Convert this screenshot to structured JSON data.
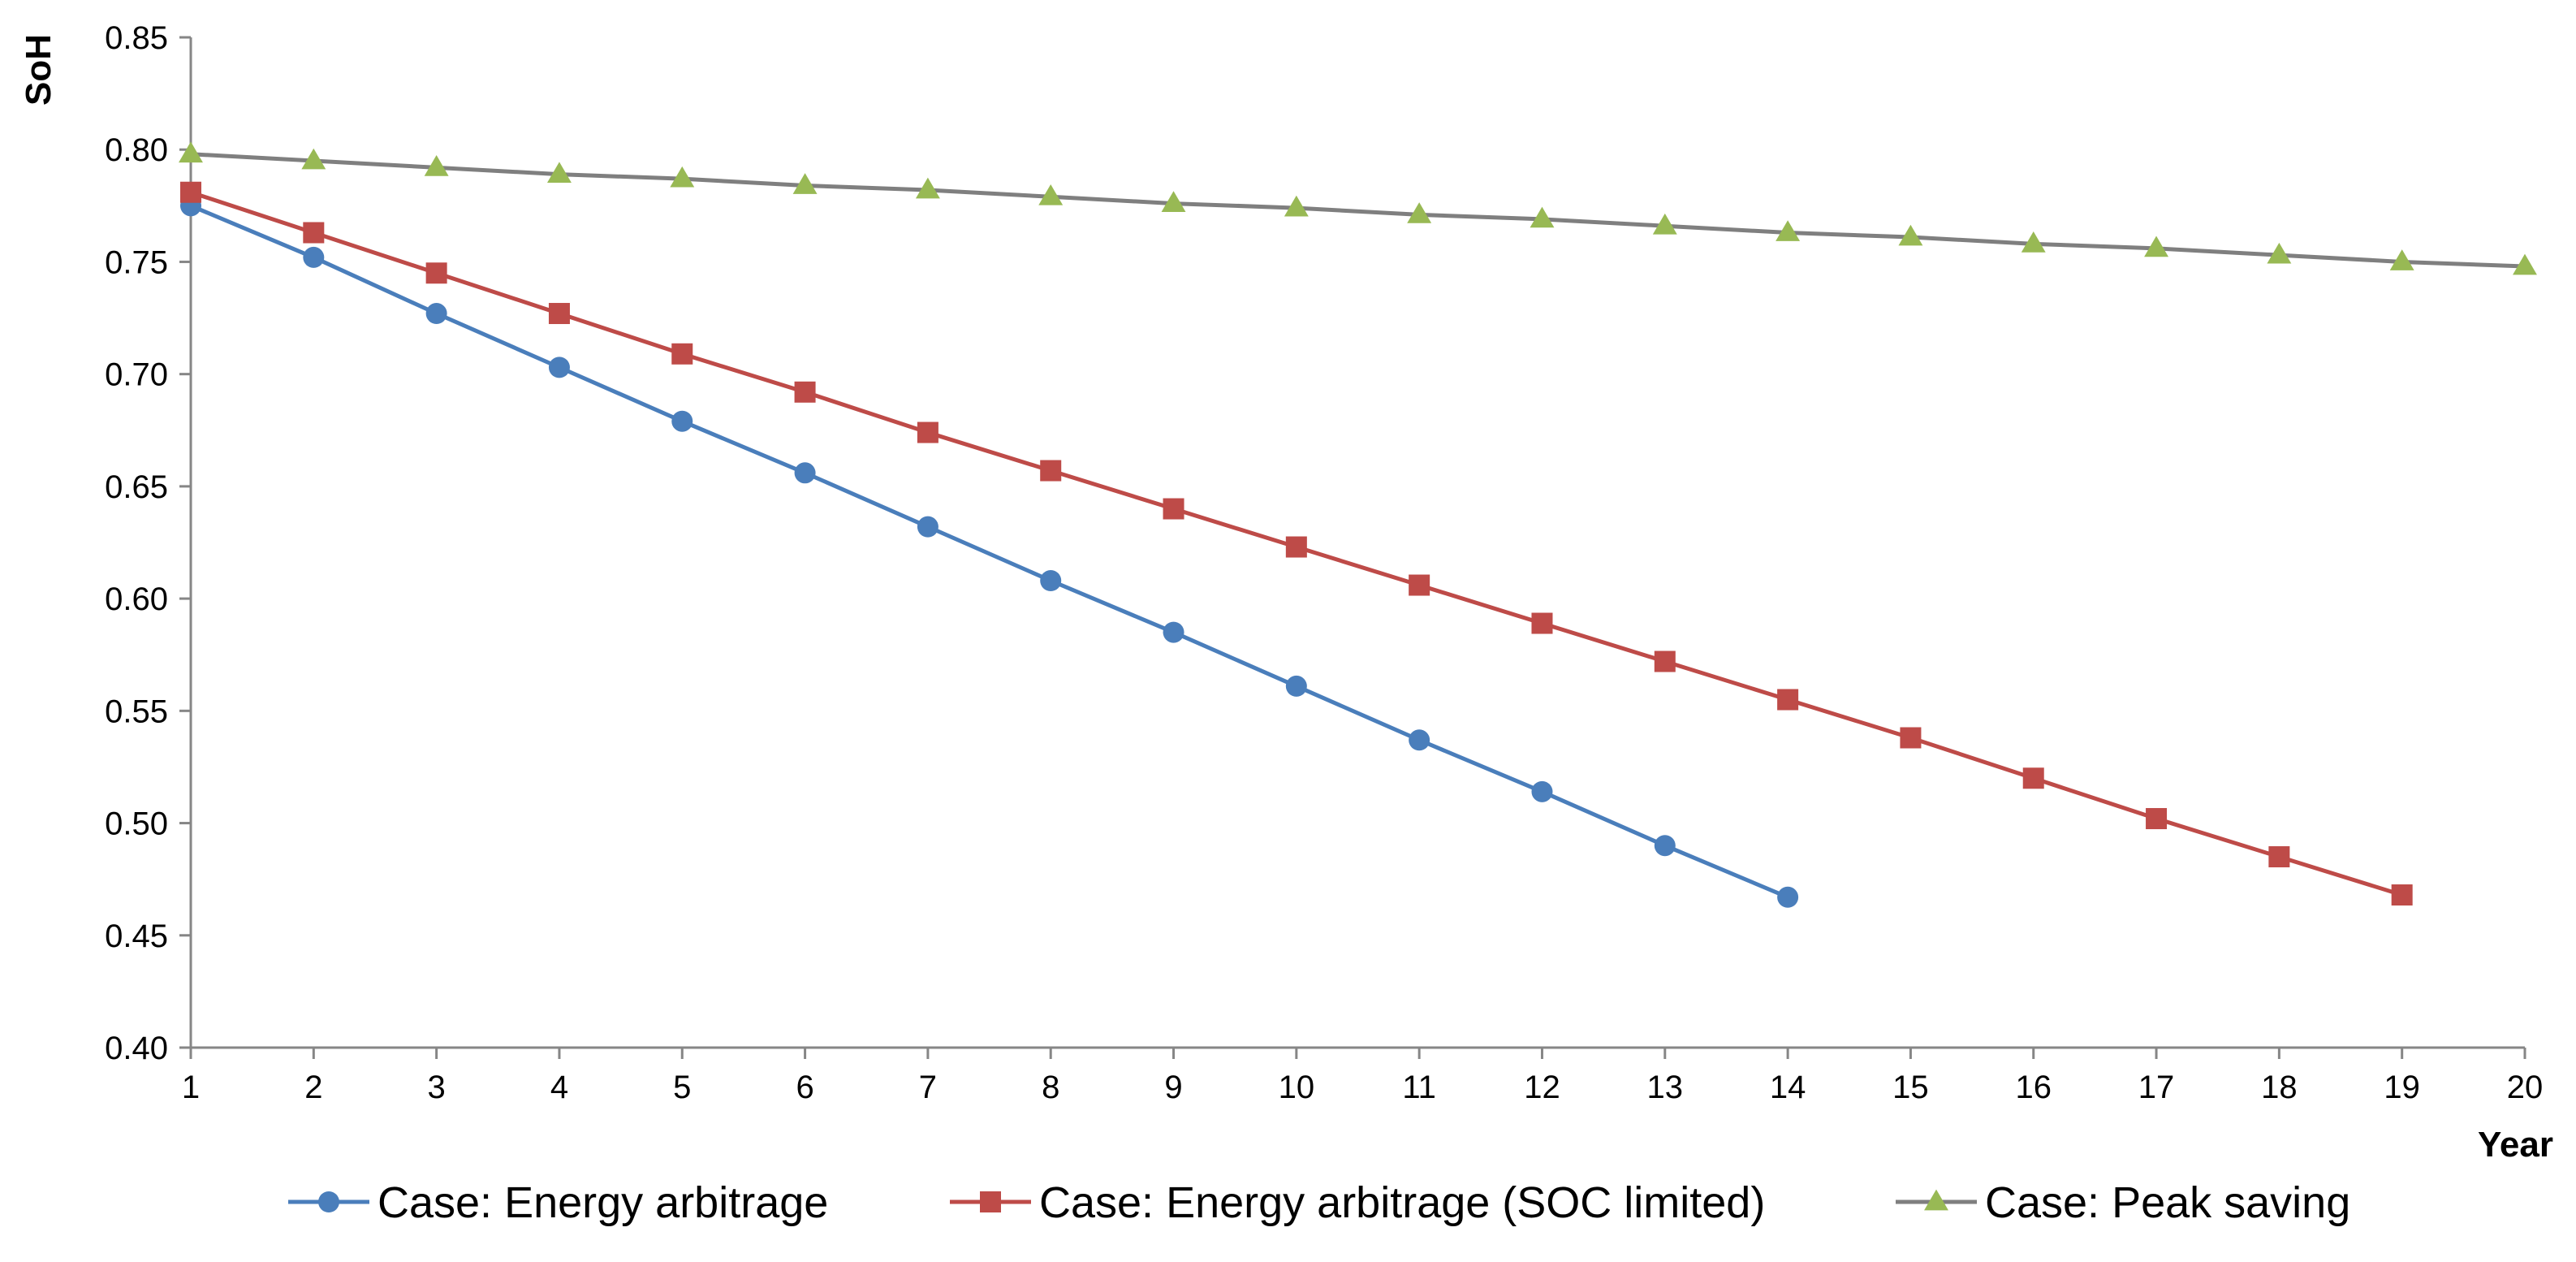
{
  "chart_data": {
    "type": "line",
    "title": "",
    "xlabel": "Year",
    "ylabel": "SoH",
    "x": [
      1,
      2,
      3,
      4,
      5,
      6,
      7,
      8,
      9,
      10,
      11,
      12,
      13,
      14,
      15,
      16,
      17,
      18,
      19,
      20
    ],
    "xlim": [
      1,
      20
    ],
    "ylim": [
      0.4,
      0.85
    ],
    "yticks": [
      "0.40",
      "0.45",
      "0.50",
      "0.55",
      "0.60",
      "0.65",
      "0.70",
      "0.75",
      "0.80",
      "0.85"
    ],
    "xticks": [
      "1",
      "2",
      "3",
      "4",
      "5",
      "6",
      "7",
      "8",
      "9",
      "10",
      "11",
      "12",
      "13",
      "14",
      "15",
      "16",
      "17",
      "18",
      "19",
      "20"
    ],
    "grid": false,
    "legend_position": "bottom",
    "series": [
      {
        "name": "Case: Energy arbitrage",
        "color": "#4a7ebb",
        "marker": "circle",
        "x": [
          1,
          2,
          3,
          4,
          5,
          6,
          7,
          8,
          9,
          10,
          11,
          12,
          13,
          14
        ],
        "values": [
          0.775,
          0.752,
          0.727,
          0.703,
          0.679,
          0.656,
          0.632,
          0.608,
          0.585,
          0.561,
          0.537,
          0.514,
          0.49,
          0.467
        ]
      },
      {
        "name": "Case: Energy arbitrage (SOC limited)",
        "color": "#be4b48",
        "marker": "square",
        "x": [
          1,
          2,
          3,
          4,
          5,
          6,
          7,
          8,
          9,
          10,
          11,
          12,
          13,
          14,
          15,
          16,
          17,
          18,
          19
        ],
        "values": [
          0.781,
          0.763,
          0.745,
          0.727,
          0.709,
          0.692,
          0.674,
          0.657,
          0.64,
          0.623,
          0.606,
          0.589,
          0.572,
          0.555,
          0.538,
          0.52,
          0.502,
          0.485,
          0.468
        ]
      },
      {
        "name": "Case: Peak saving",
        "color": "#7f7f7f",
        "marker_color": "#98b954",
        "marker": "triangle",
        "x": [
          1,
          2,
          3,
          4,
          5,
          6,
          7,
          8,
          9,
          10,
          11,
          12,
          13,
          14,
          15,
          16,
          17,
          18,
          19,
          20
        ],
        "values": [
          0.798,
          0.795,
          0.792,
          0.789,
          0.787,
          0.784,
          0.782,
          0.779,
          0.776,
          0.774,
          0.771,
          0.769,
          0.766,
          0.763,
          0.761,
          0.758,
          0.756,
          0.753,
          0.75,
          0.748
        ]
      }
    ]
  }
}
